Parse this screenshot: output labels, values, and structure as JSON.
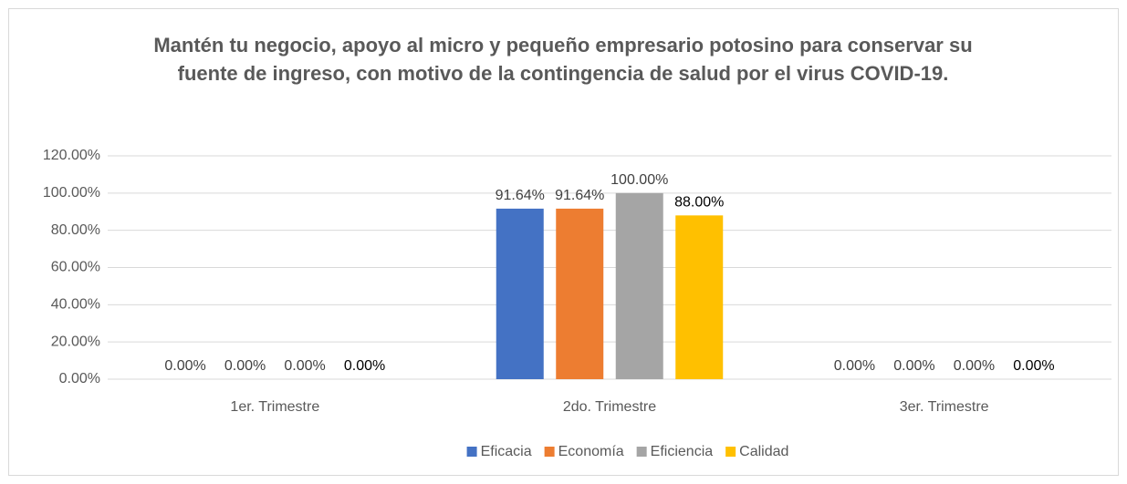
{
  "chart_data": {
    "type": "bar",
    "title": "Mantén tu negocio, apoyo al micro y pequeño empresario potosino para conservar su fuente de ingreso, con motivo de la contingencia de salud por el virus COVID-19.",
    "categories": [
      "1er. Trimestre",
      "2do. Trimestre",
      "3er. Trimestre"
    ],
    "series": [
      {
        "name": "Eficacia",
        "color": "#4472c4",
        "values": [
          0,
          91.64,
          0
        ],
        "value_labels": [
          "0.00%",
          "91.64%",
          "0.00%"
        ]
      },
      {
        "name": "Economía",
        "color": "#ed7d31",
        "values": [
          0,
          91.64,
          0
        ],
        "value_labels": [
          "0.00%",
          "91.64%",
          "0.00%"
        ]
      },
      {
        "name": "Eficiencia",
        "color": "#a5a5a5",
        "values": [
          0,
          100,
          0
        ],
        "value_labels": [
          "0.00%",
          "100.00%",
          "0.00%"
        ]
      },
      {
        "name": "Calidad",
        "color": "#ffc000",
        "values": [
          0,
          88,
          0
        ],
        "value_labels": [
          "0.00%",
          "88.00%",
          "0.00%"
        ]
      }
    ],
    "ylim": [
      0,
      120
    ],
    "yticks": [
      {
        "value": 0,
        "label": "0.00%"
      },
      {
        "value": 20,
        "label": "20.00%"
      },
      {
        "value": 40,
        "label": "40.00%"
      },
      {
        "value": 60,
        "label": "60.00%"
      },
      {
        "value": 80,
        "label": "80.00%"
      },
      {
        "value": 100,
        "label": "100.00%"
      },
      {
        "value": 120,
        "label": "120.00%"
      }
    ],
    "grid": true,
    "legend": "bottom"
  }
}
